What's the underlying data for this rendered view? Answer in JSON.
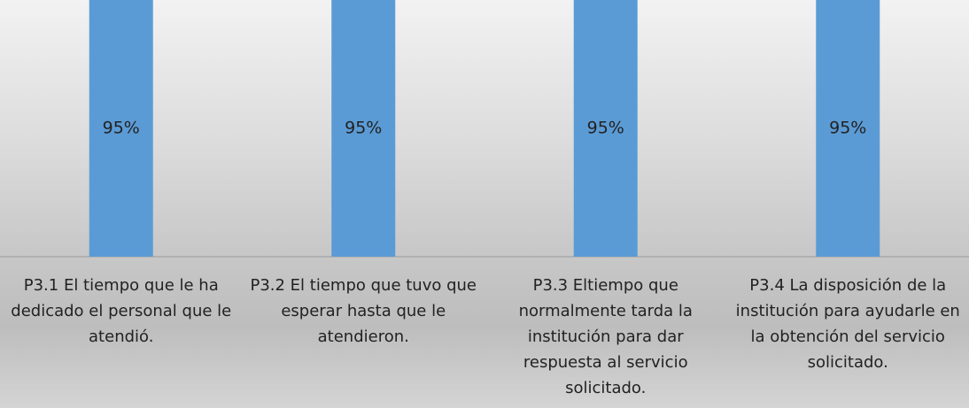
{
  "chart_data": {
    "type": "bar",
    "categories": [
      "P3.1 El tiempo que le ha dedicado el personal que le atendió.",
      "P3.2 El tiempo que tuvo que esperar hasta que le atendieron.",
      "P3.3 Eltiempo que normalmente tarda la institución para dar respuesta al servicio solicitado.",
      "P3.4 La disposición de la institución para ayudarle en la obtención del servicio solicitado."
    ],
    "values": [
      95,
      95,
      95,
      95
    ],
    "value_labels": [
      "95%",
      "95%",
      "95%",
      "95%"
    ],
    "color": "#5b9bd5",
    "ylim": [
      0,
      95
    ]
  }
}
